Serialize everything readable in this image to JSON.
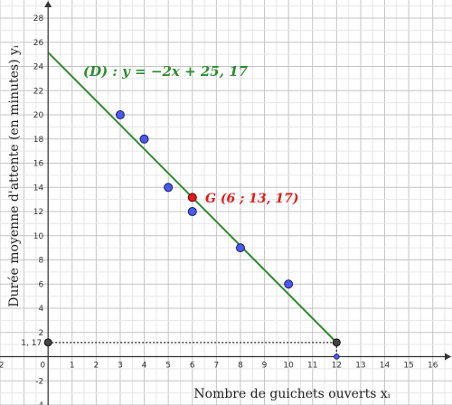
{
  "chart_data": {
    "type": "scatter",
    "xlabel": "Nombre de guichets ouverts xᵢ",
    "ylabel": "Durée moyenne d'attente (en minutes) yᵢ",
    "xlim": [
      -2,
      16.8
    ],
    "ylim": [
      -4,
      29.5
    ],
    "x_ticks": [
      -2,
      0,
      1,
      2,
      3,
      4,
      5,
      6,
      7,
      8,
      9,
      10,
      11,
      12,
      13,
      14,
      15,
      16
    ],
    "y_ticks": [
      -4,
      -2,
      2,
      4,
      6,
      8,
      10,
      12,
      14,
      16,
      18,
      20,
      22,
      24,
      26,
      28
    ],
    "grid": true,
    "points": [
      {
        "x": 3,
        "y": 20
      },
      {
        "x": 4,
        "y": 18
      },
      {
        "x": 5,
        "y": 14
      },
      {
        "x": 6,
        "y": 12
      },
      {
        "x": 8,
        "y": 9
      },
      {
        "x": 10,
        "y": 6
      }
    ],
    "regression_line": {
      "label": "(D) : y = −2x + 25, 17",
      "slope": -2,
      "intercept": 25.17,
      "x_from": 0,
      "x_to": 12,
      "color": "#2e8b2e"
    },
    "mean_point": {
      "label": "G (6 ; 13, 17)",
      "x": 6,
      "y": 13.17,
      "color": "#e01b1b"
    },
    "highlight_point": {
      "x": 12,
      "y": 1.17
    },
    "highlight_y_label": "1, 17",
    "highlight_x_label": "12",
    "colors": {
      "points": "#4a5ae8",
      "grid_minor": "#e6e6e6",
      "grid_major": "#c4c4c4",
      "axis": "#333333"
    }
  }
}
